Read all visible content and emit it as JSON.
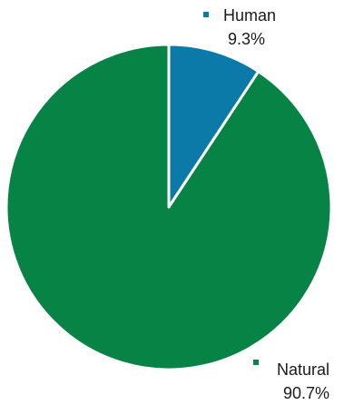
{
  "chart_data": {
    "type": "pie",
    "title": "",
    "slices": [
      {
        "name": "Human",
        "value": 9.3,
        "label": "9.3%",
        "color": "#0b7aa8"
      },
      {
        "name": "Natural",
        "value": 90.7,
        "label": "90.7%",
        "color": "#078346"
      }
    ],
    "start": "12 o'clock",
    "direction": "clockwise",
    "slice_border_color": "#ffffff",
    "legend": "inline labels with square markers"
  }
}
